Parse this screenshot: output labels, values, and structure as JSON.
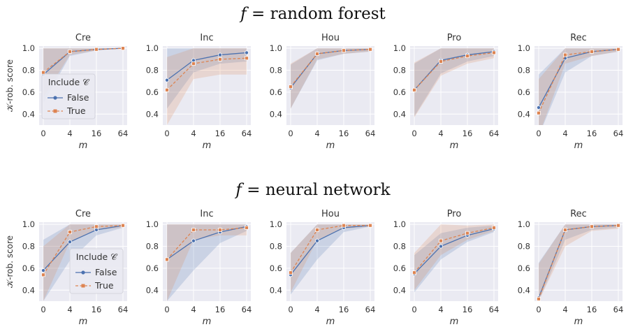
{
  "row_titles": [
    {
      "prefix": "f",
      "suffix": " = random forest"
    },
    {
      "prefix": "f",
      "suffix": " = neural network"
    }
  ],
  "ylabel": "𝒦-rob. score",
  "xlabel": "m",
  "legend": {
    "title": "Include 𝒞",
    "entries": [
      "False",
      "True"
    ]
  },
  "colors": {
    "False": "#4c72b0",
    "True": "#dd8452"
  },
  "chart_data": [
    {
      "type": "line",
      "title": "Cre",
      "row": 0,
      "x": [
        0,
        4,
        16,
        64
      ],
      "xticks": [
        "0",
        "4",
        "16",
        "64"
      ],
      "ylim": [
        0.3,
        1.02
      ],
      "yticks": [
        0.4,
        0.6,
        0.8,
        1.0
      ],
      "series": [
        {
          "name": "False",
          "values": [
            0.76,
            0.97,
            0.99,
            1.0
          ],
          "lower": [
            0.5,
            0.93,
            0.98,
            1.0
          ],
          "upper": [
            1.0,
            1.0,
            1.0,
            1.0
          ]
        },
        {
          "name": "True",
          "values": [
            0.78,
            0.97,
            0.99,
            1.0
          ],
          "lower": [
            0.55,
            0.94,
            0.98,
            1.0
          ],
          "upper": [
            1.0,
            1.0,
            1.0,
            1.0
          ]
        }
      ]
    },
    {
      "type": "line",
      "title": "Inc",
      "row": 0,
      "x": [
        0,
        4,
        16,
        64
      ],
      "xticks": [
        "0",
        "4",
        "16",
        "64"
      ],
      "ylim": [
        0.3,
        1.02
      ],
      "yticks": [
        0.4,
        0.6,
        0.8,
        1.0
      ],
      "series": [
        {
          "name": "False",
          "values": [
            0.71,
            0.89,
            0.94,
            0.96
          ],
          "lower": [
            0.45,
            0.78,
            0.86,
            0.88
          ],
          "upper": [
            1.0,
            1.0,
            1.0,
            1.0
          ]
        },
        {
          "name": "True",
          "values": [
            0.62,
            0.86,
            0.9,
            0.91
          ],
          "lower": [
            0.3,
            0.72,
            0.76,
            0.76
          ],
          "upper": [
            0.92,
            1.0,
            1.0,
            1.0
          ]
        }
      ]
    },
    {
      "type": "line",
      "title": "Hou",
      "row": 0,
      "x": [
        0,
        4,
        16,
        64
      ],
      "xticks": [
        "0",
        "4",
        "16",
        "64"
      ],
      "ylim": [
        0.3,
        1.02
      ],
      "yticks": [
        0.4,
        0.6,
        0.8,
        1.0
      ],
      "series": [
        {
          "name": "False",
          "values": [
            0.64,
            0.95,
            0.98,
            0.99
          ],
          "lower": [
            0.45,
            0.89,
            0.95,
            0.97
          ],
          "upper": [
            0.85,
            1.0,
            1.0,
            1.0
          ]
        },
        {
          "name": "True",
          "values": [
            0.65,
            0.95,
            0.98,
            0.99
          ],
          "lower": [
            0.45,
            0.9,
            0.95,
            0.97
          ],
          "upper": [
            0.86,
            1.0,
            1.0,
            1.0
          ]
        }
      ]
    },
    {
      "type": "line",
      "title": "Pro",
      "row": 0,
      "x": [
        0,
        4,
        16,
        64
      ],
      "xticks": [
        "0",
        "4",
        "16",
        "64"
      ],
      "ylim": [
        0.3,
        1.02
      ],
      "yticks": [
        0.4,
        0.6,
        0.8,
        1.0
      ],
      "series": [
        {
          "name": "False",
          "values": [
            0.62,
            0.89,
            0.94,
            0.97
          ],
          "lower": [
            0.38,
            0.77,
            0.88,
            0.93
          ],
          "upper": [
            0.86,
            1.0,
            1.0,
            1.0
          ]
        },
        {
          "name": "True",
          "values": [
            0.62,
            0.88,
            0.93,
            0.96
          ],
          "lower": [
            0.37,
            0.75,
            0.86,
            0.91
          ],
          "upper": [
            0.87,
            1.0,
            1.0,
            1.0
          ]
        }
      ]
    },
    {
      "type": "line",
      "title": "Rec",
      "row": 0,
      "x": [
        0,
        4,
        16,
        64
      ],
      "xticks": [
        "0",
        "4",
        "16",
        "64"
      ],
      "ylim": [
        0.3,
        1.02
      ],
      "yticks": [
        0.4,
        0.6,
        0.8,
        1.0
      ],
      "series": [
        {
          "name": "False",
          "values": [
            0.46,
            0.91,
            0.97,
            0.99
          ],
          "lower": [
            0.2,
            0.78,
            0.93,
            0.97
          ],
          "upper": [
            0.76,
            1.0,
            1.0,
            1.0
          ]
        },
        {
          "name": "True",
          "values": [
            0.41,
            0.94,
            0.97,
            0.99
          ],
          "lower": [
            0.2,
            0.86,
            0.93,
            0.97
          ],
          "upper": [
            0.72,
            1.0,
            1.0,
            1.0
          ]
        }
      ]
    },
    {
      "type": "line",
      "title": "Cre",
      "row": 1,
      "x": [
        0,
        4,
        16,
        64
      ],
      "xticks": [
        "0",
        "4",
        "16",
        "64"
      ],
      "ylim": [
        0.3,
        1.02
      ],
      "yticks": [
        0.4,
        0.6,
        0.8,
        1.0
      ],
      "series": [
        {
          "name": "False",
          "values": [
            0.58,
            0.84,
            0.95,
            0.99
          ],
          "lower": [
            0.3,
            0.67,
            0.9,
            0.97
          ],
          "upper": [
            0.86,
            1.0,
            1.0,
            1.0
          ]
        },
        {
          "name": "True",
          "values": [
            0.54,
            0.93,
            0.98,
            0.99
          ],
          "lower": [
            0.3,
            0.84,
            0.95,
            0.97
          ],
          "upper": [
            0.8,
            1.0,
            1.0,
            1.0
          ]
        }
      ]
    },
    {
      "type": "line",
      "title": "Inc",
      "row": 1,
      "x": [
        0,
        4,
        16,
        64
      ],
      "xticks": [
        "0",
        "4",
        "16",
        "64"
      ],
      "ylim": [
        0.3,
        1.02
      ],
      "yticks": [
        0.4,
        0.6,
        0.8,
        1.0
      ],
      "series": [
        {
          "name": "False",
          "values": [
            0.68,
            0.85,
            0.93,
            0.98
          ],
          "lower": [
            0.3,
            0.58,
            0.83,
            0.94
          ],
          "upper": [
            1.0,
            1.0,
            1.0,
            1.0
          ]
        },
        {
          "name": "True",
          "values": [
            0.68,
            0.95,
            0.95,
            0.97
          ],
          "lower": [
            0.3,
            0.86,
            0.9,
            0.9
          ],
          "upper": [
            1.0,
            1.0,
            1.0,
            1.0
          ]
        }
      ]
    },
    {
      "type": "line",
      "title": "Hou",
      "row": 1,
      "x": [
        0,
        4,
        16,
        64
      ],
      "xticks": [
        "0",
        "4",
        "16",
        "64"
      ],
      "ylim": [
        0.3,
        1.02
      ],
      "yticks": [
        0.4,
        0.6,
        0.8,
        1.0
      ],
      "series": [
        {
          "name": "False",
          "values": [
            0.54,
            0.85,
            0.97,
            0.99
          ],
          "lower": [
            0.36,
            0.68,
            0.93,
            0.98
          ],
          "upper": [
            0.74,
            1.0,
            1.0,
            1.0
          ]
        },
        {
          "name": "True",
          "values": [
            0.56,
            0.95,
            0.99,
            0.99
          ],
          "lower": [
            0.38,
            0.86,
            0.96,
            0.98
          ],
          "upper": [
            0.74,
            1.0,
            1.0,
            1.0
          ]
        }
      ]
    },
    {
      "type": "line",
      "title": "Pro",
      "row": 1,
      "x": [
        0,
        4,
        16,
        64
      ],
      "xticks": [
        "0",
        "4",
        "16",
        "64"
      ],
      "ylim": [
        0.3,
        1.02
      ],
      "yticks": [
        0.4,
        0.6,
        0.8,
        1.0
      ],
      "series": [
        {
          "name": "False",
          "values": [
            0.55,
            0.8,
            0.9,
            0.96
          ],
          "lower": [
            0.38,
            0.68,
            0.84,
            0.93
          ],
          "upper": [
            0.72,
            0.92,
            0.97,
            0.99
          ]
        },
        {
          "name": "True",
          "values": [
            0.56,
            0.85,
            0.92,
            0.97
          ],
          "lower": [
            0.4,
            0.72,
            0.86,
            0.94
          ],
          "upper": [
            0.74,
            1.0,
            0.99,
            1.0
          ]
        }
      ]
    },
    {
      "type": "line",
      "title": "Rec",
      "row": 1,
      "x": [
        0,
        4,
        16,
        64
      ],
      "xticks": [
        "0",
        "4",
        "16",
        "64"
      ],
      "ylim": [
        0.3,
        1.02
      ],
      "yticks": [
        0.4,
        0.6,
        0.8,
        1.0
      ],
      "series": [
        {
          "name": "False",
          "values": [
            0.33,
            0.95,
            0.98,
            0.99
          ],
          "lower": [
            0.3,
            0.86,
            0.95,
            0.97
          ],
          "upper": [
            0.65,
            1.0,
            1.0,
            1.0
          ]
        },
        {
          "name": "True",
          "values": [
            0.32,
            0.95,
            0.98,
            0.99
          ],
          "lower": [
            0.3,
            0.8,
            0.94,
            0.96
          ],
          "upper": [
            0.64,
            1.0,
            1.0,
            1.0
          ]
        }
      ]
    }
  ]
}
